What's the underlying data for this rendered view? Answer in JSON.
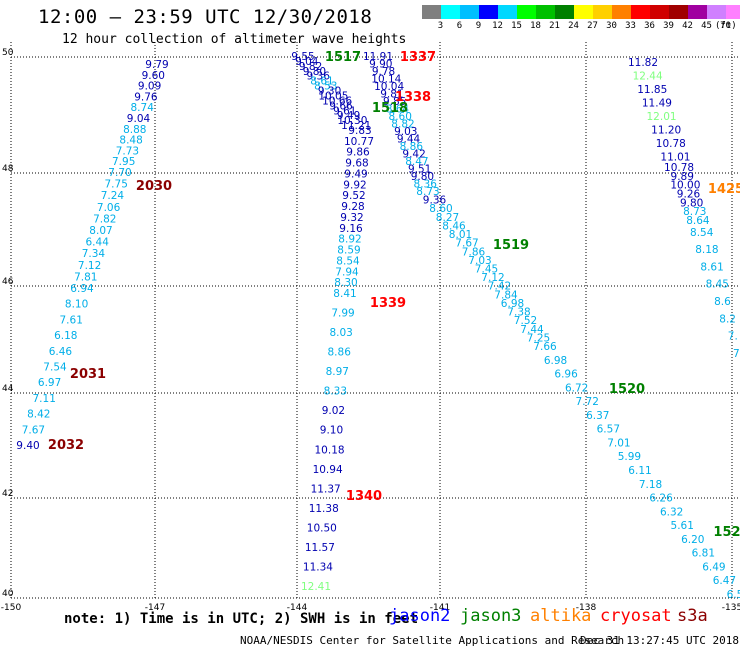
{
  "header": {
    "title": "12:00 — 23:59 UTC 12/30/2018",
    "subtitle": "12 hour collection of altimeter wave heights"
  },
  "colorbar": {
    "colors": [
      "#7f7f7f",
      "#00ffff",
      "#00bfff",
      "#0000ff",
      "#00d8ff",
      "#00ff00",
      "#00c000",
      "#008000",
      "#ffff00",
      "#ffd000",
      "#ff8000",
      "#ff0000",
      "#d00000",
      "#a00000",
      "#a000a0",
      "#d080ff",
      "#ff80ff",
      "#000000"
    ],
    "labels": [
      "3",
      "6",
      "9",
      "12",
      "15",
      "18",
      "21",
      "24",
      "27",
      "30",
      "33",
      "36",
      "39",
      "42",
      "45",
      "70"
    ],
    "unit": "(ft)"
  },
  "axes": {
    "lat_labels": [
      "50",
      "48",
      "46",
      "44",
      "42",
      "40"
    ],
    "lon_labels": [
      "-150",
      "-147",
      "-144",
      "-141",
      "-138",
      "-135"
    ]
  },
  "tracks": {
    "A": [
      "9.79",
      "9.60",
      "9.09",
      "9.76",
      "8.74",
      "9.04",
      "8.88",
      "8.48",
      "7.73",
      "7.95",
      "7.70",
      "7.75",
      "7.24",
      "7.06",
      "7.82",
      "8.07",
      "6.44",
      "7.34",
      "7.12",
      "7.81",
      "6.94",
      "8.10",
      "7.61",
      "6.18",
      "6.46",
      "7.54",
      "6.97",
      "7.11",
      "8.42",
      "7.67",
      "9.40"
    ],
    "B": [
      "9.55",
      "9.04",
      "9.82",
      "9.80",
      "9.36",
      "8.61",
      "8.53",
      "9.30",
      "10.05",
      "10.66",
      "9.66",
      "9.61",
      "9.49",
      "10.30",
      "11.21",
      "9.83",
      "10.77",
      "9.86",
      "9.68",
      "9.49",
      "9.92",
      "9.52",
      "9.28",
      "9.32",
      "9.16",
      "8.92",
      "8.59",
      "8.54",
      "7.94",
      "8.30",
      "8.41",
      "7.99",
      "8.03",
      "8.86",
      "8.97",
      "8.33",
      "9.02",
      "9.10",
      "10.18",
      "10.94",
      "11.37",
      "11.38",
      "10.50",
      "11.57",
      "11.34",
      "12.41"
    ],
    "C": [
      "11.91",
      "9.90",
      "9.78",
      "10.14",
      "10.04",
      "9.81",
      "9.85",
      "8.64",
      "8.60",
      "8.82",
      "9.03",
      "9.44",
      "8.86",
      "9.42",
      "8.47",
      "9.51",
      "9.80",
      "8.36",
      "8.73",
      "9.36",
      "8.60",
      "8.27",
      "8.46",
      "8.01",
      "7.67",
      "7.86",
      "7.03",
      "7.45",
      "7.12",
      "7.42",
      "7.84",
      "6.98",
      "7.38",
      "7.52",
      "7.44",
      "7.25",
      "7.66",
      "6.98",
      "6.96",
      "6.72",
      "7.72",
      "6.37",
      "6.57",
      "7.01",
      "5.99",
      "6.11",
      "7.18",
      "6.26",
      "6.32",
      "5.61",
      "6.20",
      "6.81",
      "6.49",
      "6.47",
      "6.5"
    ],
    "D": [
      "11.82",
      "12.44",
      "11.85",
      "11.49",
      "12.01",
      "11.20",
      "10.78",
      "11.01",
      "10.78",
      "9.89",
      "10.00",
      "9.26",
      "9.80",
      "8.73",
      "8.64",
      "8.54",
      "8.18",
      "8.61",
      "8.45",
      "8.6",
      "8.2",
      "7.",
      "7."
    ]
  },
  "pass_labels": [
    "1517",
    "1337",
    "1338",
    "1518",
    "2030",
    "1519",
    "1339",
    "2031",
    "1520",
    "2032",
    "1340",
    "152",
    "1425"
  ],
  "footer": {
    "note": "note: 1) Time is in UTC; 2) SWH is in feet",
    "legend": [
      "jason2",
      "jason3",
      "altika",
      "cryosat",
      "s3a"
    ],
    "legend_colors": [
      "#0000ff",
      "#008000",
      "#ff8000",
      "#ff0000",
      "#8b0000"
    ],
    "credit": "NOAA/NESDIS Center for Satellite Applications and Research",
    "generated": "Dec 31 13:27:45 UTC 2018"
  }
}
